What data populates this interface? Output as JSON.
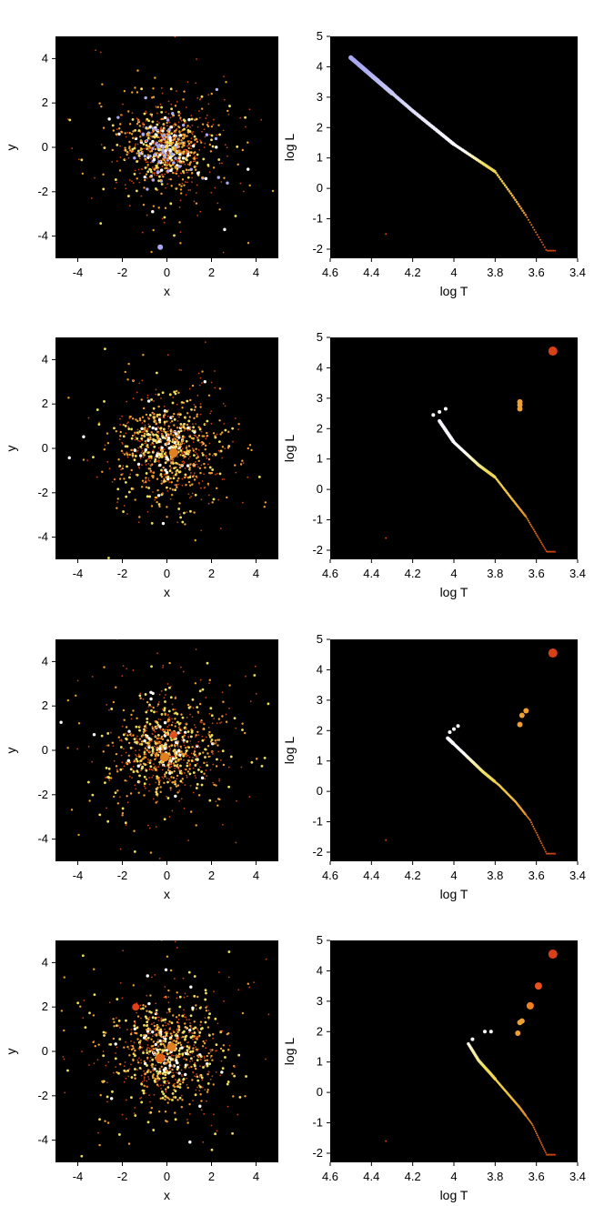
{
  "chart_data": [
    {
      "type": "scatter",
      "panel": "spatial",
      "xlabel": "x",
      "ylabel": "y",
      "xlim": [
        -5,
        5
      ],
      "ylim": [
        -5,
        5
      ],
      "xticks": [
        "-4",
        "-2",
        "0",
        "2",
        "4"
      ],
      "yticks": [
        "-4",
        "-2",
        "0",
        "2",
        "4"
      ],
      "background": "#000000",
      "grid": false,
      "stars": {
        "seed": 11,
        "count": 950,
        "spread": 0.85,
        "colors": {
          "blue": "#a9a9f2",
          "white": "#ffffff",
          "yellow": "#f0e060",
          "orange": "#f0a030",
          "red": "#c84010"
        },
        "fractions": {
          "blue": 0.06,
          "white": 0.08,
          "yellow": 0.16,
          "orange": 0.3,
          "red": 0.4
        }
      },
      "outliers": [
        {
          "x": -0.3,
          "y": -4.5,
          "color": "#a9a9f2",
          "size": 3
        }
      ]
    },
    {
      "type": "scatter",
      "panel": "hr-diagram",
      "xlabel": "log T",
      "ylabel": "log L",
      "xlim": [
        4.6,
        3.4
      ],
      "ylim": [
        -2.3,
        5
      ],
      "xticks": [
        "4.6",
        "4.4",
        "4.2",
        "4",
        "3.8",
        "3.6",
        "3.4"
      ],
      "yticks": [
        "-2",
        "-1",
        "0",
        "1",
        "2",
        "3",
        "4",
        "5"
      ],
      "background": "#000000",
      "grid": false,
      "main_sequence": {
        "from_logT": 4.5,
        "to_logT": 3.51,
        "n": 140,
        "knots_logT": [
          4.5,
          4.2,
          4.0,
          3.8,
          3.72,
          3.65,
          3.55
        ],
        "knots_logL": [
          4.3,
          2.55,
          1.45,
          0.55,
          -0.2,
          -0.9,
          -2.05
        ]
      },
      "giants": [],
      "remnants": [
        {
          "x": 4.33,
          "y": -1.5,
          "color": "#c84010",
          "size": 1
        }
      ]
    },
    {
      "type": "scatter",
      "panel": "spatial",
      "xlabel": "x",
      "ylabel": "y",
      "xlim": [
        -5,
        5
      ],
      "ylim": [
        -5,
        5
      ],
      "xticks": [
        "-4",
        "-2",
        "0",
        "2",
        "4"
      ],
      "yticks": [
        "-4",
        "-2",
        "0",
        "2",
        "4"
      ],
      "background": "#000000",
      "grid": false,
      "stars": {
        "seed": 23,
        "count": 900,
        "spread": 1.05,
        "colors": {
          "blue": "#a9a9f2",
          "white": "#ffffff",
          "yellow": "#f0e060",
          "orange": "#f0a030",
          "red": "#c84010"
        },
        "fractions": {
          "blue": 0.0,
          "white": 0.08,
          "yellow": 0.2,
          "orange": 0.32,
          "red": 0.4
        }
      },
      "outliers": [
        {
          "x": 0.3,
          "y": -0.2,
          "color": "#e08020",
          "size": 5
        }
      ]
    },
    {
      "type": "scatter",
      "panel": "hr-diagram",
      "xlabel": "log T",
      "ylabel": "log L",
      "xlim": [
        4.6,
        3.4
      ],
      "ylim": [
        -2.3,
        5
      ],
      "xticks": [
        "4.6",
        "4.4",
        "4.2",
        "4",
        "3.8",
        "3.6",
        "3.4"
      ],
      "yticks": [
        "-2",
        "-1",
        "0",
        "1",
        "2",
        "3",
        "4",
        "5"
      ],
      "background": "#000000",
      "grid": false,
      "main_sequence": {
        "from_logT": 4.07,
        "to_logT": 3.51,
        "n": 110,
        "knots_logT": [
          4.08,
          4.0,
          3.88,
          3.8,
          3.72,
          3.65,
          3.55
        ],
        "knots_logL": [
          2.35,
          1.55,
          0.8,
          0.4,
          -0.3,
          -0.9,
          -2.05
        ]
      },
      "turnoff": [
        {
          "x": 4.07,
          "y": 2.55
        },
        {
          "x": 4.04,
          "y": 2.65
        },
        {
          "x": 4.1,
          "y": 2.45
        }
      ],
      "giants": [
        {
          "x": 3.68,
          "y": 2.65,
          "color": "#f0a030",
          "size": 3
        },
        {
          "x": 3.68,
          "y": 2.78,
          "color": "#f0a030",
          "size": 3
        },
        {
          "x": 3.68,
          "y": 2.88,
          "color": "#f0a030",
          "size": 3
        },
        {
          "x": 3.52,
          "y": 4.55,
          "color": "#d84018",
          "size": 5
        }
      ],
      "remnants": [
        {
          "x": 4.33,
          "y": -1.6,
          "color": "#c84010",
          "size": 1
        }
      ]
    },
    {
      "type": "scatter",
      "panel": "spatial",
      "xlabel": "x",
      "ylabel": "y",
      "xlim": [
        -5,
        5
      ],
      "ylim": [
        -5,
        5
      ],
      "xticks": [
        "-4",
        "-2",
        "0",
        "2",
        "4"
      ],
      "yticks": [
        "-4",
        "-2",
        "0",
        "2",
        "4"
      ],
      "background": "#000000",
      "grid": false,
      "stars": {
        "seed": 37,
        "count": 900,
        "spread": 1.1,
        "colors": {
          "blue": "#a9a9f2",
          "white": "#ffffff",
          "yellow": "#f0e060",
          "orange": "#f0a030",
          "red": "#c84010"
        },
        "fractions": {
          "blue": 0.0,
          "white": 0.07,
          "yellow": 0.22,
          "orange": 0.31,
          "red": 0.4
        }
      },
      "outliers": [
        {
          "x": 0.3,
          "y": 0.7,
          "color": "#e05020",
          "size": 4
        },
        {
          "x": -0.1,
          "y": -0.3,
          "color": "#e08020",
          "size": 5
        }
      ]
    },
    {
      "type": "scatter",
      "panel": "hr-diagram",
      "xlabel": "log T",
      "ylabel": "log L",
      "xlim": [
        4.6,
        3.4
      ],
      "ylim": [
        -2.3,
        5
      ],
      "xticks": [
        "4.6",
        "4.4",
        "4.2",
        "4",
        "3.8",
        "3.6",
        "3.4"
      ],
      "yticks": [
        "-2",
        "-1",
        "0",
        "1",
        "2",
        "3",
        "4",
        "5"
      ],
      "background": "#000000",
      "grid": false,
      "main_sequence": {
        "from_logT": 4.03,
        "to_logT": 3.51,
        "n": 105,
        "knots_logT": [
          4.03,
          3.96,
          3.86,
          3.78,
          3.7,
          3.63,
          3.55
        ],
        "knots_logL": [
          1.75,
          1.3,
          0.65,
          0.2,
          -0.35,
          -0.95,
          -2.05
        ]
      },
      "turnoff": [
        {
          "x": 4.0,
          "y": 2.05
        },
        {
          "x": 3.98,
          "y": 2.15
        },
        {
          "x": 4.02,
          "y": 1.95
        }
      ],
      "giants": [
        {
          "x": 3.68,
          "y": 2.2,
          "color": "#f0a030",
          "size": 3
        },
        {
          "x": 3.67,
          "y": 2.5,
          "color": "#f0a030",
          "size": 3
        },
        {
          "x": 3.65,
          "y": 2.65,
          "color": "#f0a030",
          "size": 3
        },
        {
          "x": 3.52,
          "y": 4.55,
          "color": "#d84018",
          "size": 5
        }
      ],
      "remnants": [
        {
          "x": 4.33,
          "y": -1.6,
          "color": "#c84010",
          "size": 1
        }
      ]
    },
    {
      "type": "scatter",
      "panel": "spatial",
      "xlabel": "x",
      "ylabel": "y",
      "xlim": [
        -5,
        5
      ],
      "ylim": [
        -5,
        5
      ],
      "xticks": [
        "-4",
        "-2",
        "0",
        "2",
        "4"
      ],
      "yticks": [
        "-4",
        "-2",
        "0",
        "2",
        "4"
      ],
      "background": "#000000",
      "grid": false,
      "stars": {
        "seed": 53,
        "count": 900,
        "spread": 1.2,
        "colors": {
          "blue": "#a9a9f2",
          "white": "#ffffff",
          "yellow": "#f0e060",
          "orange": "#f0a030",
          "red": "#c84010"
        },
        "fractions": {
          "blue": 0.0,
          "white": 0.06,
          "yellow": 0.24,
          "orange": 0.3,
          "red": 0.4
        }
      },
      "outliers": [
        {
          "x": -1.4,
          "y": 2.0,
          "color": "#e04018",
          "size": 4
        },
        {
          "x": 0.2,
          "y": 0.2,
          "color": "#e08020",
          "size": 5
        },
        {
          "x": -0.3,
          "y": -0.3,
          "color": "#e06018",
          "size": 5
        }
      ]
    },
    {
      "type": "scatter",
      "panel": "hr-diagram",
      "xlabel": "log T",
      "ylabel": "log L",
      "xlim": [
        4.6,
        3.4
      ],
      "ylim": [
        -2.3,
        5
      ],
      "xticks": [
        "4.6",
        "4.4",
        "4.2",
        "4",
        "3.8",
        "3.6",
        "3.4"
      ],
      "yticks": [
        "-2",
        "-1",
        "0",
        "1",
        "2",
        "3",
        "4",
        "5"
      ],
      "background": "#000000",
      "grid": false,
      "main_sequence": {
        "from_logT": 3.93,
        "to_logT": 3.51,
        "n": 95,
        "knots_logT": [
          3.93,
          3.88,
          3.82,
          3.75,
          3.68,
          3.62,
          3.55
        ],
        "knots_logL": [
          1.6,
          1.05,
          0.6,
          0.05,
          -0.5,
          -1.05,
          -2.05
        ]
      },
      "turnoff": [
        {
          "x": 3.91,
          "y": 1.75
        },
        {
          "x": 3.85,
          "y": 2.0
        },
        {
          "x": 3.82,
          "y": 2.0
        }
      ],
      "giants": [
        {
          "x": 3.69,
          "y": 1.95,
          "color": "#f0a030",
          "size": 3
        },
        {
          "x": 3.68,
          "y": 2.3,
          "color": "#f0a030",
          "size": 3
        },
        {
          "x": 3.67,
          "y": 2.35,
          "color": "#f0a030",
          "size": 3
        },
        {
          "x": 3.63,
          "y": 2.85,
          "color": "#f08020",
          "size": 4
        },
        {
          "x": 3.59,
          "y": 3.5,
          "color": "#e85020",
          "size": 4
        },
        {
          "x": 3.52,
          "y": 4.55,
          "color": "#d84018",
          "size": 5
        }
      ],
      "remnants": [
        {
          "x": 4.33,
          "y": -1.6,
          "color": "#c84010",
          "size": 1
        }
      ]
    }
  ]
}
